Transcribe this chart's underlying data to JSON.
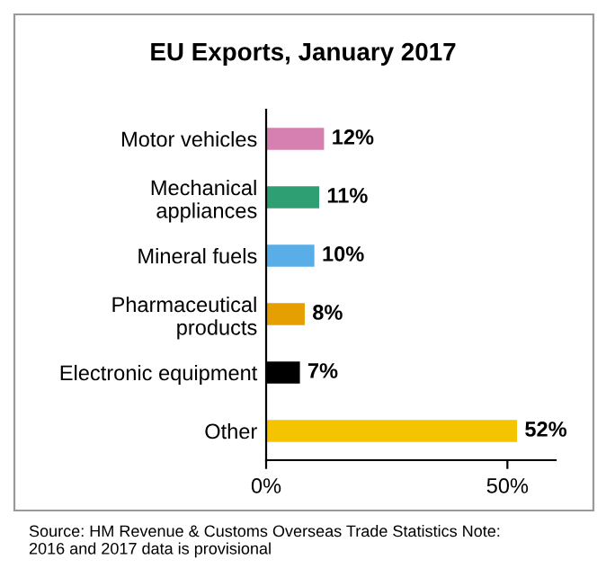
{
  "chart_data": {
    "type": "bar",
    "orientation": "horizontal",
    "title": "EU Exports, January 2017",
    "categories": [
      "Motor vehicles",
      "Mechanical\nappliances",
      "Mineral fuels",
      "Pharmaceutical\nproducts",
      "Electronic equipment",
      "Other"
    ],
    "values": [
      12,
      11,
      10,
      8,
      7,
      52
    ],
    "colors": [
      "#d580b0",
      "#2e9e73",
      "#5aaee8",
      "#e69f00",
      "#000000",
      "#f5c400"
    ],
    "value_labels": [
      "12%",
      "11%",
      "10%",
      "8%",
      "7%",
      "52%"
    ],
    "xlim": [
      0,
      60
    ],
    "xticks": [
      {
        "value": 0,
        "label": "0%"
      },
      {
        "value": 50,
        "label": "50%"
      }
    ],
    "grid": false,
    "legend": false,
    "annotations": [
      "Source: HM Revenue & Customs Overseas Trade Statistics Note:\n2016 and 2017 data is provisional"
    ]
  }
}
